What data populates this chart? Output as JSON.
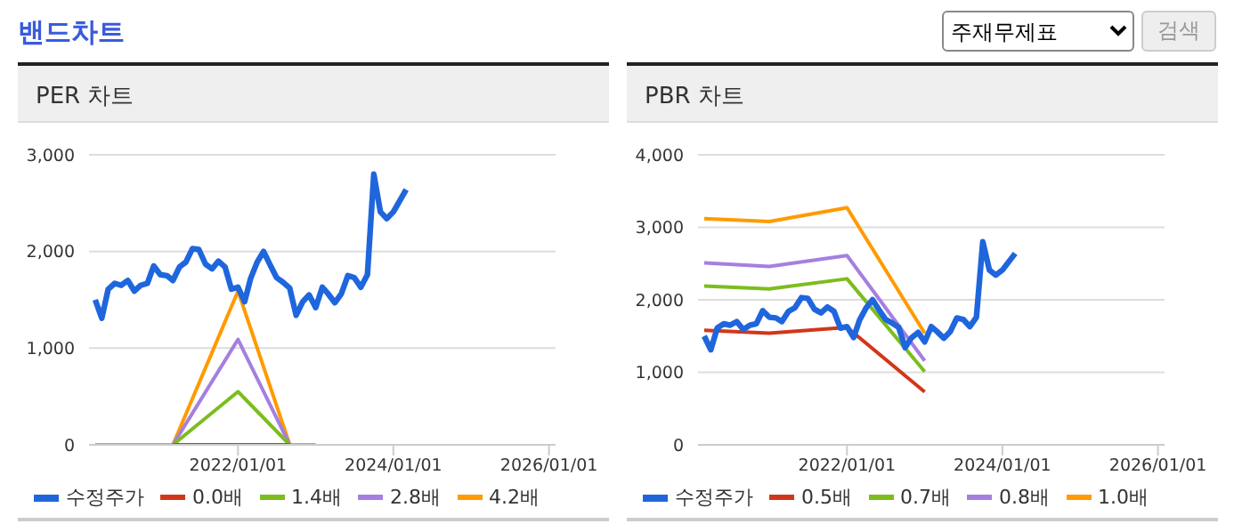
{
  "chart_data": [
    {
      "type": "other",
      "title": "밴드차트",
      "annotations": [
        "주재무제표",
        "검색"
      ]
    },
    {
      "type": "line",
      "title": "PER 차트",
      "xlim": [
        "2020-02",
        "2026-02"
      ],
      "xticks": [
        {
          "value": "2022-01-01",
          "label": "2022/01/01"
        },
        {
          "value": "2024-01-01",
          "label": "2024/01/01"
        },
        {
          "value": "2026-01-01",
          "label": "2026/01/01"
        }
      ],
      "ylim": [
        0,
        3000
      ],
      "yticks": [
        {
          "value": 0,
          "label": "0"
        },
        {
          "value": 1000,
          "label": "1,000"
        },
        {
          "value": 2000,
          "label": "2,000"
        },
        {
          "value": 3000,
          "label": "3,000"
        }
      ],
      "grid": "y",
      "legend": "bottom",
      "marker": "none",
      "series": [
        {
          "name": "수정주가",
          "color": "#1f66dd",
          "x": [
            "2020-03",
            "2020-04",
            "2020-05",
            "2020-06",
            "2020-07",
            "2020-08",
            "2020-09",
            "2020-10",
            "2020-11",
            "2020-12",
            "2021-01",
            "2021-02",
            "2021-03",
            "2021-04",
            "2021-05",
            "2021-06",
            "2021-07",
            "2021-08",
            "2021-09",
            "2021-10",
            "2021-11",
            "2021-12",
            "2022-01",
            "2022-02",
            "2022-03",
            "2022-04",
            "2022-05",
            "2022-06",
            "2022-07",
            "2022-08",
            "2022-09",
            "2022-10",
            "2022-11",
            "2022-12",
            "2023-01",
            "2023-02",
            "2023-03",
            "2023-04",
            "2023-05",
            "2023-06",
            "2023-07",
            "2023-08",
            "2023-09",
            "2023-10",
            "2023-11",
            "2023-12",
            "2024-01",
            "2024-03"
          ],
          "values": [
            1500,
            1310,
            1610,
            1670,
            1650,
            1700,
            1590,
            1650,
            1670,
            1850,
            1760,
            1750,
            1700,
            1840,
            1890,
            2030,
            2020,
            1870,
            1820,
            1900,
            1840,
            1610,
            1630,
            1480,
            1720,
            1890,
            2000,
            1860,
            1730,
            1680,
            1620,
            1340,
            1480,
            1550,
            1420,
            1630,
            1560,
            1470,
            1560,
            1750,
            1730,
            1630,
            1760,
            2800,
            2410,
            2340,
            2410,
            2640
          ]
        },
        {
          "name": "0.0배",
          "color": "#d2361a",
          "x": [
            "2021-03",
            "2022-01",
            "2022-09"
          ],
          "values": [
            0,
            0,
            0
          ]
        },
        {
          "name": "1.4배",
          "color": "#7cbd1e",
          "x": [
            "2021-03",
            "2022-01",
            "2022-09"
          ],
          "values": [
            0,
            550,
            0
          ]
        },
        {
          "name": "2.8배",
          "color": "#a57fe0",
          "x": [
            "2021-03",
            "2022-01",
            "2022-09"
          ],
          "values": [
            0,
            1090,
            0
          ]
        },
        {
          "name": "4.2배",
          "color": "#ff9a00",
          "x": [
            "2020-03",
            "2021-03",
            "2022-01",
            "2022-09",
            "2023-01"
          ],
          "values": [
            0,
            0,
            1590,
            0,
            0
          ]
        }
      ]
    },
    {
      "type": "line",
      "title": "PBR 차트",
      "xlim": [
        "2020-02",
        "2026-02"
      ],
      "xticks": [
        {
          "value": "2022-01-01",
          "label": "2022/01/01"
        },
        {
          "value": "2024-01-01",
          "label": "2024/01/01"
        },
        {
          "value": "2026-01-01",
          "label": "2026/01/01"
        }
      ],
      "ylim": [
        0,
        4000
      ],
      "yticks": [
        {
          "value": 0,
          "label": "0"
        },
        {
          "value": 1000,
          "label": "1,000"
        },
        {
          "value": 2000,
          "label": "2,000"
        },
        {
          "value": 3000,
          "label": "3,000"
        },
        {
          "value": 4000,
          "label": "4,000"
        }
      ],
      "grid": "y",
      "legend": "bottom",
      "marker": "none",
      "series": [
        {
          "name": "수정주가",
          "color": "#1f66dd",
          "x": [
            "2020-03",
            "2020-04",
            "2020-05",
            "2020-06",
            "2020-07",
            "2020-08",
            "2020-09",
            "2020-10",
            "2020-11",
            "2020-12",
            "2021-01",
            "2021-02",
            "2021-03",
            "2021-04",
            "2021-05",
            "2021-06",
            "2021-07",
            "2021-08",
            "2021-09",
            "2021-10",
            "2021-11",
            "2021-12",
            "2022-01",
            "2022-02",
            "2022-03",
            "2022-04",
            "2022-05",
            "2022-06",
            "2022-07",
            "2022-08",
            "2022-09",
            "2022-10",
            "2022-11",
            "2022-12",
            "2023-01",
            "2023-02",
            "2023-03",
            "2023-04",
            "2023-05",
            "2023-06",
            "2023-07",
            "2023-08",
            "2023-09",
            "2023-10",
            "2023-11",
            "2023-12",
            "2024-01",
            "2024-03"
          ],
          "values": [
            1500,
            1310,
            1610,
            1670,
            1650,
            1700,
            1590,
            1650,
            1670,
            1850,
            1760,
            1750,
            1700,
            1840,
            1890,
            2030,
            2020,
            1870,
            1820,
            1900,
            1840,
            1610,
            1630,
            1480,
            1720,
            1890,
            2000,
            1860,
            1730,
            1680,
            1620,
            1340,
            1480,
            1550,
            1420,
            1630,
            1560,
            1470,
            1560,
            1750,
            1730,
            1630,
            1760,
            2800,
            2410,
            2340,
            2410,
            2640
          ]
        },
        {
          "name": "0.5배",
          "color": "#d2361a",
          "x": [
            "2020-03",
            "2021-01",
            "2022-01",
            "2023-01"
          ],
          "values": [
            1580,
            1540,
            1620,
            730
          ]
        },
        {
          "name": "0.7배",
          "color": "#7cbd1e",
          "x": [
            "2020-03",
            "2021-01",
            "2022-01",
            "2023-01"
          ],
          "values": [
            2190,
            2150,
            2290,
            1010
          ]
        },
        {
          "name": "0.8배",
          "color": "#a57fe0",
          "x": [
            "2020-03",
            "2021-01",
            "2022-01",
            "2023-01"
          ],
          "values": [
            2510,
            2460,
            2610,
            1160
          ]
        },
        {
          "name": "1.0배",
          "color": "#ff9a00",
          "x": [
            "2020-03",
            "2021-01",
            "2022-01",
            "2023-01"
          ],
          "values": [
            3120,
            3080,
            3270,
            1540
          ]
        }
      ]
    }
  ]
}
